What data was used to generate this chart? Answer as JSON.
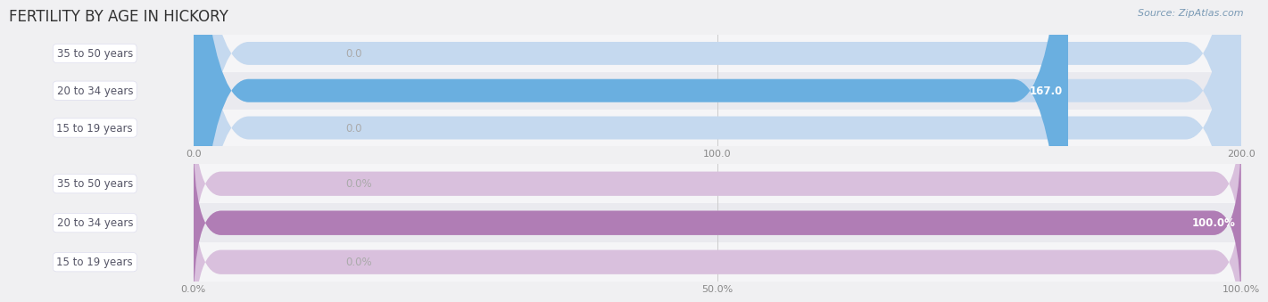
{
  "title": "FERTILITY BY AGE IN HICKORY",
  "source": "Source: ZipAtlas.com",
  "top_chart": {
    "categories": [
      "15 to 19 years",
      "20 to 34 years",
      "35 to 50 years"
    ],
    "values": [
      0.0,
      167.0,
      0.0
    ],
    "xlim": [
      0,
      200.0
    ],
    "xticks": [
      0.0,
      100.0,
      200.0
    ],
    "xtick_labels": [
      "0.0",
      "100.0",
      "200.0"
    ],
    "bar_color_full": "#6aafe0",
    "bar_color_empty": "#c5d9ef",
    "value_labels": [
      "0.0",
      "167.0",
      "0.0"
    ]
  },
  "bottom_chart": {
    "categories": [
      "15 to 19 years",
      "20 to 34 years",
      "35 to 50 years"
    ],
    "values": [
      0.0,
      100.0,
      0.0
    ],
    "xlim": [
      0,
      100.0
    ],
    "xticks": [
      0.0,
      50.0,
      100.0
    ],
    "xtick_labels": [
      "0.0%",
      "50.0%",
      "100.0%"
    ],
    "bar_color_full": "#b07db5",
    "bar_color_empty": "#d9c0dd",
    "value_labels": [
      "0.0%",
      "100.0%",
      "0.0%"
    ]
  },
  "bg_color": "#f0f0f2",
  "label_font_size": 8.5,
  "value_font_size": 8.5,
  "tick_font_size": 8,
  "title_font_size": 12,
  "source_font_size": 8
}
